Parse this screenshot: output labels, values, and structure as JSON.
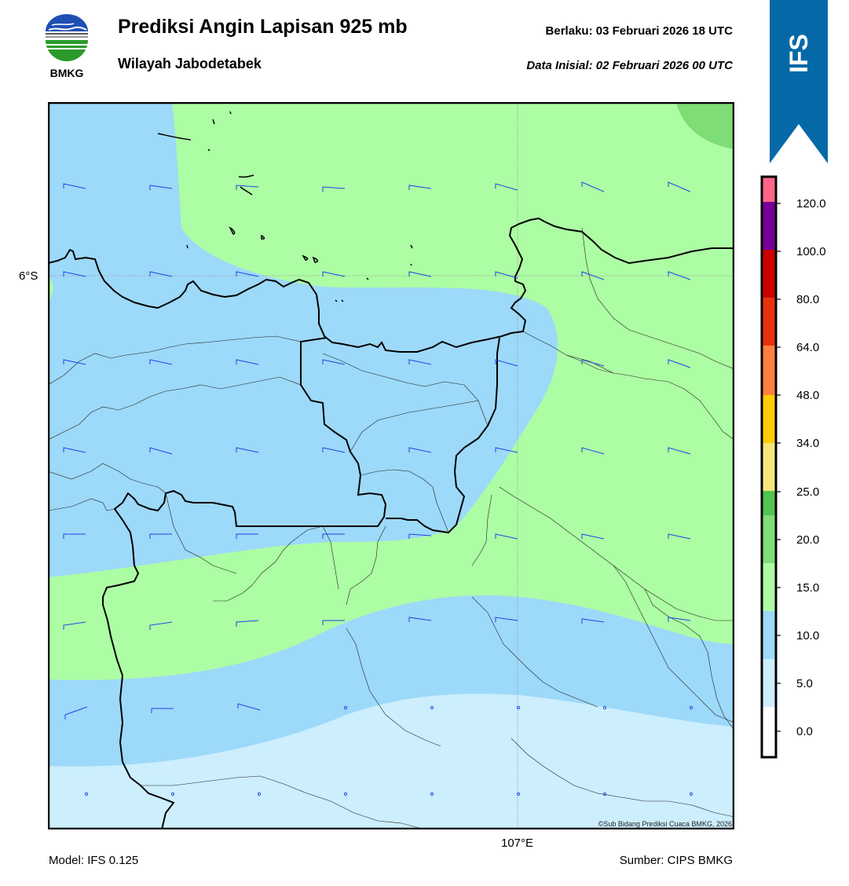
{
  "header": {
    "title": "Prediksi Angin Lapisan 925 mb",
    "subtitle": "Wilayah Jabodetabek",
    "valid_time": "Berlaku:  03 Februari 2026 18 UTC",
    "init_time": "Data Inisial:  02 Februari 2026 00 UTC"
  },
  "logo": {
    "text": "BMKG",
    "icon": "bmkg-logo"
  },
  "ribbon": {
    "label": "IFS",
    "color": "#0569a7"
  },
  "map": {
    "lat_label": "6°S",
    "lon_label": "107°E",
    "credit": "©Sub Bidang Prediksi Cuaca BMKG, 2026",
    "colors": {
      "band_0_5": "#cceefd",
      "band_5_10": "#9dd9f9",
      "band_10_15": "#adfda4",
      "band_15_20": "#7edd75",
      "border": "#000000",
      "barb": "#1f44e6"
    }
  },
  "colorbar": {
    "tick_labels": [
      "120.0",
      "100.0",
      "80.0",
      "64.0",
      "48.0",
      "34.0",
      "25.0",
      "20.0",
      "15.0",
      "10.0",
      "5.0",
      "0.0"
    ],
    "colors": [
      "#ffffff",
      "#cceefd",
      "#9dd9f9",
      "#adfda4",
      "#7edd75",
      "#52c451",
      "#f5e57d",
      "#ffcc00",
      "#ff8040",
      "#e8320e",
      "#cc0000",
      "#9c0000",
      "#780096",
      "#ff6688"
    ]
  },
  "footer": {
    "model": "Model: IFS 0.125",
    "source": "Sumber: CIPS BMKG"
  }
}
